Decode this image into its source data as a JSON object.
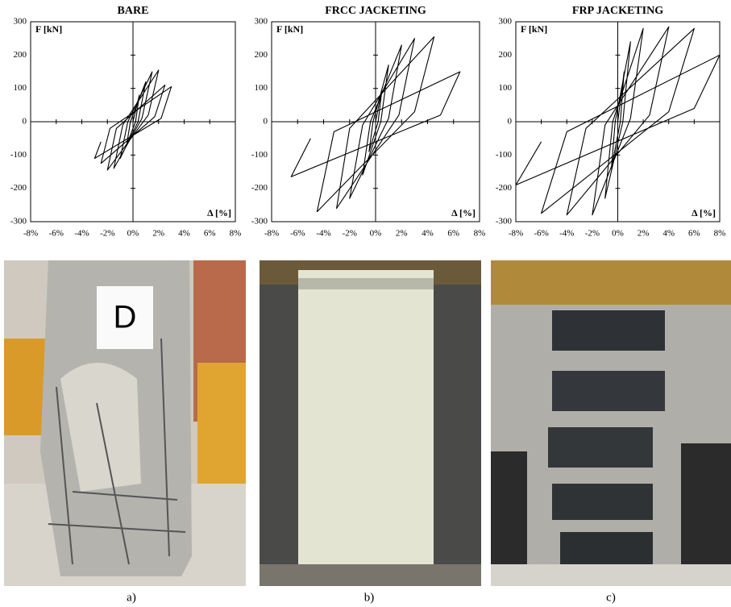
{
  "chart_data": [
    {
      "type": "line",
      "title": "BARE",
      "y_label": "F [kN]",
      "x_label": "Δ [%]",
      "color": "#000000",
      "x": [
        0,
        0.5,
        0.2,
        -0.5,
        -0.2,
        1,
        0.4,
        -1,
        -0.4,
        1.5,
        0.7,
        -1.5,
        -0.8,
        2,
        1.2,
        -2,
        -1.3,
        2.5,
        1.7,
        -2.5,
        -1.8,
        3,
        2.2,
        -3,
        -2.5
      ],
      "values": [
        0,
        80,
        0,
        -70,
        0,
        120,
        0,
        -110,
        0,
        150,
        10,
        -140,
        -10,
        155,
        20,
        -145,
        -20,
        110,
        15,
        -125,
        -20,
        105,
        10,
        -110,
        -60
      ],
      "xlim": [
        -8,
        8
      ],
      "ylim": [
        -300,
        300
      ],
      "xticks": [
        {
          "value": -8,
          "label": "-8%"
        },
        {
          "value": -6,
          "label": "-6%"
        },
        {
          "value": -4,
          "label": "-4%"
        },
        {
          "value": -2,
          "label": "-2%"
        },
        {
          "value": 0,
          "label": "0%"
        },
        {
          "value": 2,
          "label": "2%"
        },
        {
          "value": 4,
          "label": "4%"
        },
        {
          "value": 6,
          "label": "6%"
        },
        {
          "value": 8,
          "label": "8%"
        }
      ],
      "yticks": [
        -300,
        -200,
        -100,
        0,
        100,
        200,
        300
      ]
    },
    {
      "type": "line",
      "title": "FRCC JACKETING",
      "y_label": "F [kN]",
      "x_label": "Δ [%]",
      "color": "#000000",
      "x": [
        0,
        0.5,
        0.2,
        -0.5,
        -0.2,
        1,
        0.4,
        -1,
        -0.4,
        2,
        1,
        -2,
        -1,
        3,
        1.8,
        -3,
        -2,
        4.5,
        3,
        -4.5,
        -3.2,
        6.5,
        5,
        -6.5,
        -5
      ],
      "values": [
        0,
        100,
        0,
        -90,
        0,
        170,
        0,
        -160,
        0,
        230,
        10,
        -230,
        -10,
        250,
        20,
        -260,
        -20,
        255,
        30,
        -270,
        -30,
        150,
        20,
        -165,
        -50
      ],
      "xlim": [
        -8,
        8
      ],
      "ylim": [
        -300,
        300
      ],
      "xticks": [
        {
          "value": -8,
          "label": "-8%"
        },
        {
          "value": -6,
          "label": "-6%"
        },
        {
          "value": -4,
          "label": "-4%"
        },
        {
          "value": -2,
          "label": "-2%"
        },
        {
          "value": 0,
          "label": "0%"
        },
        {
          "value": 2,
          "label": "2%"
        },
        {
          "value": 4,
          "label": "4%"
        },
        {
          "value": 6,
          "label": "6%"
        },
        {
          "value": 8,
          "label": "8%"
        }
      ],
      "yticks": [
        -300,
        -200,
        -100,
        0,
        100,
        200,
        300
      ]
    },
    {
      "type": "line",
      "title": "FRP JACKETING",
      "y_label": "F [kN]",
      "x_label": "Δ [%]",
      "color": "#000000",
      "x": [
        0,
        0.5,
        0.2,
        -0.5,
        -0.2,
        1,
        0.4,
        -1,
        -0.4,
        2,
        1,
        -2,
        -1,
        4,
        2.5,
        -4,
        -2.5,
        6,
        4,
        -6,
        -4,
        8,
        6,
        -8,
        -6
      ],
      "values": [
        0,
        150,
        0,
        -140,
        0,
        240,
        0,
        -230,
        0,
        280,
        10,
        -280,
        -10,
        285,
        20,
        -280,
        -20,
        280,
        30,
        -275,
        -30,
        200,
        40,
        -190,
        -60
      ],
      "xlim": [
        -8,
        8
      ],
      "ylim": [
        -300,
        300
      ],
      "xticks": [
        {
          "value": -8,
          "label": "-8%"
        },
        {
          "value": -6,
          "label": "-6%"
        },
        {
          "value": -4,
          "label": "-4%"
        },
        {
          "value": -2,
          "label": "-2%"
        },
        {
          "value": 0,
          "label": "0%"
        },
        {
          "value": 2,
          "label": "2%"
        },
        {
          "value": 4,
          "label": "4%"
        },
        {
          "value": 6,
          "label": "6%"
        },
        {
          "value": 8,
          "label": "8%"
        }
      ],
      "yticks": [
        -300,
        -200,
        -100,
        0,
        100,
        200,
        300
      ]
    }
  ],
  "sign": "D",
  "captions": [
    "a)",
    "b)",
    "c)"
  ]
}
